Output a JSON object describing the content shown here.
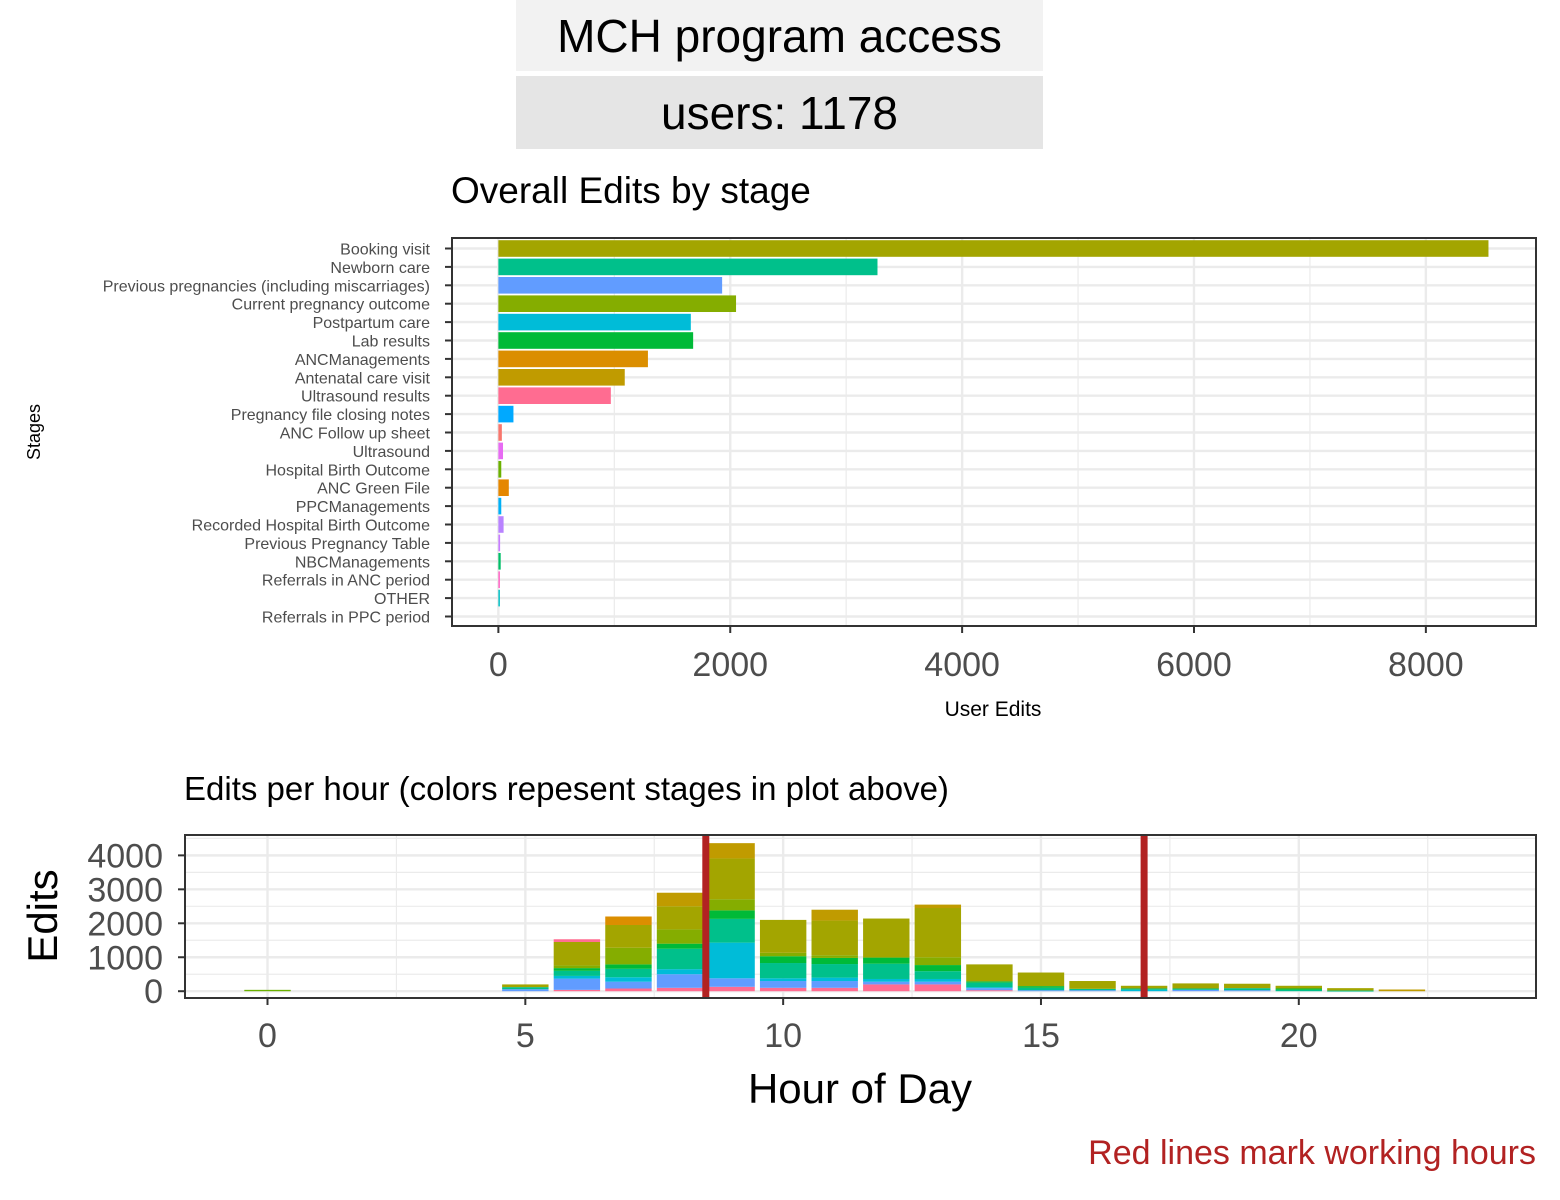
{
  "header": {
    "title": "MCH program access",
    "subtitle": "users: 1178"
  },
  "caption": "Red lines mark working hours",
  "colors": {
    "red_line": "#b22222",
    "panel_border": "#333333",
    "grid": "#ebebeb",
    "stage_palette": [
      "#F8766D",
      "#E58700",
      "#C99800",
      "#A3A500",
      "#6BB100",
      "#00BA38",
      "#00BF7D",
      "#00C0AF",
      "#00BCD8",
      "#00B0F6",
      "#619CFF",
      "#B983FF",
      "#E76BF3",
      "#FD61D1",
      "#FF67A4",
      "#E68613",
      "#00A9FF",
      "#7CAE00",
      "#0CB702",
      "#8494FF",
      "#00BE67"
    ]
  },
  "chart_data": [
    {
      "type": "bar",
      "orientation": "horizontal",
      "title": "Overall Edits by stage",
      "xlabel": "User Edits",
      "ylabel": "Stages",
      "xlim": [
        -400,
        8950
      ],
      "xticks": [
        0,
        2000,
        4000,
        6000,
        8000
      ],
      "grid": true,
      "categories": [
        "Booking visit",
        "Newborn care",
        "Previous pregnancies (including miscarriages)",
        "Current pregnancy outcome",
        "Postpartum care",
        "Lab results",
        "ANCManagements",
        "Antenatal care visit",
        "Ultrasound results",
        "Pregnancy file closing notes",
        "ANC Follow up sheet",
        "Ultrasound",
        "Hospital Birth Outcome",
        "ANC Green File",
        "PPCManagements",
        "Recorded Hospital Birth Outcome",
        "Previous Pregnancy Table",
        "NBCManagements",
        "Referrals in ANC period",
        "OTHER",
        "Referrals in PPC period"
      ],
      "values": [
        8540,
        3270,
        1930,
        2050,
        1660,
        1680,
        1290,
        1090,
        970,
        130,
        30,
        40,
        25,
        90,
        25,
        45,
        15,
        20,
        10,
        10,
        0
      ],
      "bar_colors": [
        "#A3A500",
        "#00C08B",
        "#619CFF",
        "#85AD00",
        "#00BCD8",
        "#00BA38",
        "#DB8E00",
        "#C09B00",
        "#FF6C91",
        "#00A9FF",
        "#F8766D",
        "#E76BF3",
        "#6BB100",
        "#E58700",
        "#00B0F6",
        "#B983FF",
        "#C77CFF",
        "#00BE67",
        "#FF61C3",
        "#00BFC4",
        "#F8766D"
      ]
    },
    {
      "type": "bar",
      "stacked": true,
      "title": "Edits per hour (colors repesent stages in plot above)",
      "xlabel": "Hour of Day",
      "ylabel": "Edits",
      "xlim": [
        -1.6,
        24.6
      ],
      "ylim": [
        -200,
        4600
      ],
      "xticks": [
        0,
        5,
        10,
        15,
        20
      ],
      "yticks": [
        0,
        1000,
        2000,
        3000,
        4000
      ],
      "grid": true,
      "reference_lines_x": [
        8.5,
        17
      ],
      "hours": [
        {
          "x": 0,
          "segments": [
            {
              "value": 40,
              "color": "#6BB100"
            }
          ]
        },
        {
          "x": 5,
          "segments": [
            {
              "value": 60,
              "color": "#619CFF"
            },
            {
              "value": 60,
              "color": "#00C08B"
            },
            {
              "value": 80,
              "color": "#A3A500"
            }
          ]
        },
        {
          "x": 6,
          "segments": [
            {
              "value": 40,
              "color": "#FF6C91"
            },
            {
              "value": 330,
              "color": "#619CFF"
            },
            {
              "value": 80,
              "color": "#00BCD8"
            },
            {
              "value": 150,
              "color": "#00C08B"
            },
            {
              "value": 80,
              "color": "#00BA38"
            },
            {
              "value": 80,
              "color": "#85AD00"
            },
            {
              "value": 690,
              "color": "#A3A500"
            },
            {
              "value": 80,
              "color": "#FF6C91"
            }
          ]
        },
        {
          "x": 7,
          "segments": [
            {
              "value": 80,
              "color": "#FF6C91"
            },
            {
              "value": 200,
              "color": "#619CFF"
            },
            {
              "value": 130,
              "color": "#00BCD8"
            },
            {
              "value": 250,
              "color": "#00C08B"
            },
            {
              "value": 130,
              "color": "#00BA38"
            },
            {
              "value": 490,
              "color": "#85AD00"
            },
            {
              "value": 670,
              "color": "#A3A500"
            },
            {
              "value": 250,
              "color": "#DB8E00"
            }
          ]
        },
        {
          "x": 8,
          "segments": [
            {
              "value": 100,
              "color": "#FF6C91"
            },
            {
              "value": 400,
              "color": "#619CFF"
            },
            {
              "value": 150,
              "color": "#00BCD8"
            },
            {
              "value": 600,
              "color": "#00C08B"
            },
            {
              "value": 150,
              "color": "#00BA38"
            },
            {
              "value": 420,
              "color": "#85AD00"
            },
            {
              "value": 680,
              "color": "#A3A500"
            },
            {
              "value": 400,
              "color": "#C09B00"
            }
          ]
        },
        {
          "x": 9,
          "segments": [
            {
              "value": 130,
              "color": "#FF6C91"
            },
            {
              "value": 250,
              "color": "#619CFF"
            },
            {
              "value": 1050,
              "color": "#00BCD8"
            },
            {
              "value": 700,
              "color": "#00C08B"
            },
            {
              "value": 250,
              "color": "#00BA38"
            },
            {
              "value": 330,
              "color": "#85AD00"
            },
            {
              "value": 1200,
              "color": "#A3A500"
            },
            {
              "value": 450,
              "color": "#C09B00"
            },
            {
              "value": 0,
              "color": "#DB8E00"
            }
          ]
        },
        {
          "x": 10,
          "segments": [
            {
              "value": 100,
              "color": "#FF6C91"
            },
            {
              "value": 200,
              "color": "#619CFF"
            },
            {
              "value": 80,
              "color": "#00BCD8"
            },
            {
              "value": 450,
              "color": "#00C08B"
            },
            {
              "value": 200,
              "color": "#00BA38"
            },
            {
              "value": 100,
              "color": "#85AD00"
            },
            {
              "value": 970,
              "color": "#A3A500"
            }
          ]
        },
        {
          "x": 11,
          "segments": [
            {
              "value": 100,
              "color": "#FF6C91"
            },
            {
              "value": 200,
              "color": "#619CFF"
            },
            {
              "value": 100,
              "color": "#00BCD8"
            },
            {
              "value": 400,
              "color": "#00C08B"
            },
            {
              "value": 180,
              "color": "#00BA38"
            },
            {
              "value": 80,
              "color": "#85AD00"
            },
            {
              "value": 1020,
              "color": "#A3A500"
            },
            {
              "value": 320,
              "color": "#C09B00"
            }
          ]
        },
        {
          "x": 12,
          "segments": [
            {
              "value": 200,
              "color": "#FF6C91"
            },
            {
              "value": 80,
              "color": "#619CFF"
            },
            {
              "value": 80,
              "color": "#00BCD8"
            },
            {
              "value": 450,
              "color": "#00C08B"
            },
            {
              "value": 180,
              "color": "#00BA38"
            },
            {
              "value": 1150,
              "color": "#A3A500"
            }
          ]
        },
        {
          "x": 13,
          "segments": [
            {
              "value": 200,
              "color": "#FF6C91"
            },
            {
              "value": 80,
              "color": "#619CFF"
            },
            {
              "value": 80,
              "color": "#00BCD8"
            },
            {
              "value": 230,
              "color": "#00C08B"
            },
            {
              "value": 180,
              "color": "#00BA38"
            },
            {
              "value": 230,
              "color": "#85AD00"
            },
            {
              "value": 1450,
              "color": "#A3A500"
            },
            {
              "value": 100,
              "color": "#C09B00"
            }
          ]
        },
        {
          "x": 14,
          "segments": [
            {
              "value": 30,
              "color": "#FF6C91"
            },
            {
              "value": 60,
              "color": "#619CFF"
            },
            {
              "value": 30,
              "color": "#00BCD8"
            },
            {
              "value": 130,
              "color": "#00C08B"
            },
            {
              "value": 40,
              "color": "#00BA38"
            },
            {
              "value": 500,
              "color": "#A3A500"
            }
          ]
        },
        {
          "x": 15,
          "segments": [
            {
              "value": 30,
              "color": "#619CFF"
            },
            {
              "value": 70,
              "color": "#00C08B"
            },
            {
              "value": 50,
              "color": "#00BA38"
            },
            {
              "value": 400,
              "color": "#A3A500"
            }
          ]
        },
        {
          "x": 16,
          "segments": [
            {
              "value": 30,
              "color": "#619CFF"
            },
            {
              "value": 40,
              "color": "#00C08B"
            },
            {
              "value": 230,
              "color": "#A3A500"
            }
          ]
        },
        {
          "x": 17,
          "segments": [
            {
              "value": 40,
              "color": "#00BCD8"
            },
            {
              "value": 40,
              "color": "#00C08B"
            },
            {
              "value": 80,
              "color": "#A3A500"
            }
          ]
        },
        {
          "x": 18,
          "segments": [
            {
              "value": 40,
              "color": "#619CFF"
            },
            {
              "value": 40,
              "color": "#00C08B"
            },
            {
              "value": 150,
              "color": "#A3A500"
            }
          ]
        },
        {
          "x": 19,
          "segments": [
            {
              "value": 30,
              "color": "#619CFF"
            },
            {
              "value": 60,
              "color": "#00C08B"
            },
            {
              "value": 130,
              "color": "#A3A500"
            }
          ]
        },
        {
          "x": 20,
          "segments": [
            {
              "value": 40,
              "color": "#00C08B"
            },
            {
              "value": 40,
              "color": "#00BA38"
            },
            {
              "value": 80,
              "color": "#A3A500"
            }
          ]
        },
        {
          "x": 21,
          "segments": [
            {
              "value": 20,
              "color": "#00C08B"
            },
            {
              "value": 70,
              "color": "#A3A500"
            }
          ]
        },
        {
          "x": 22,
          "segments": [
            {
              "value": 50,
              "color": "#C09B00"
            }
          ]
        }
      ]
    }
  ]
}
